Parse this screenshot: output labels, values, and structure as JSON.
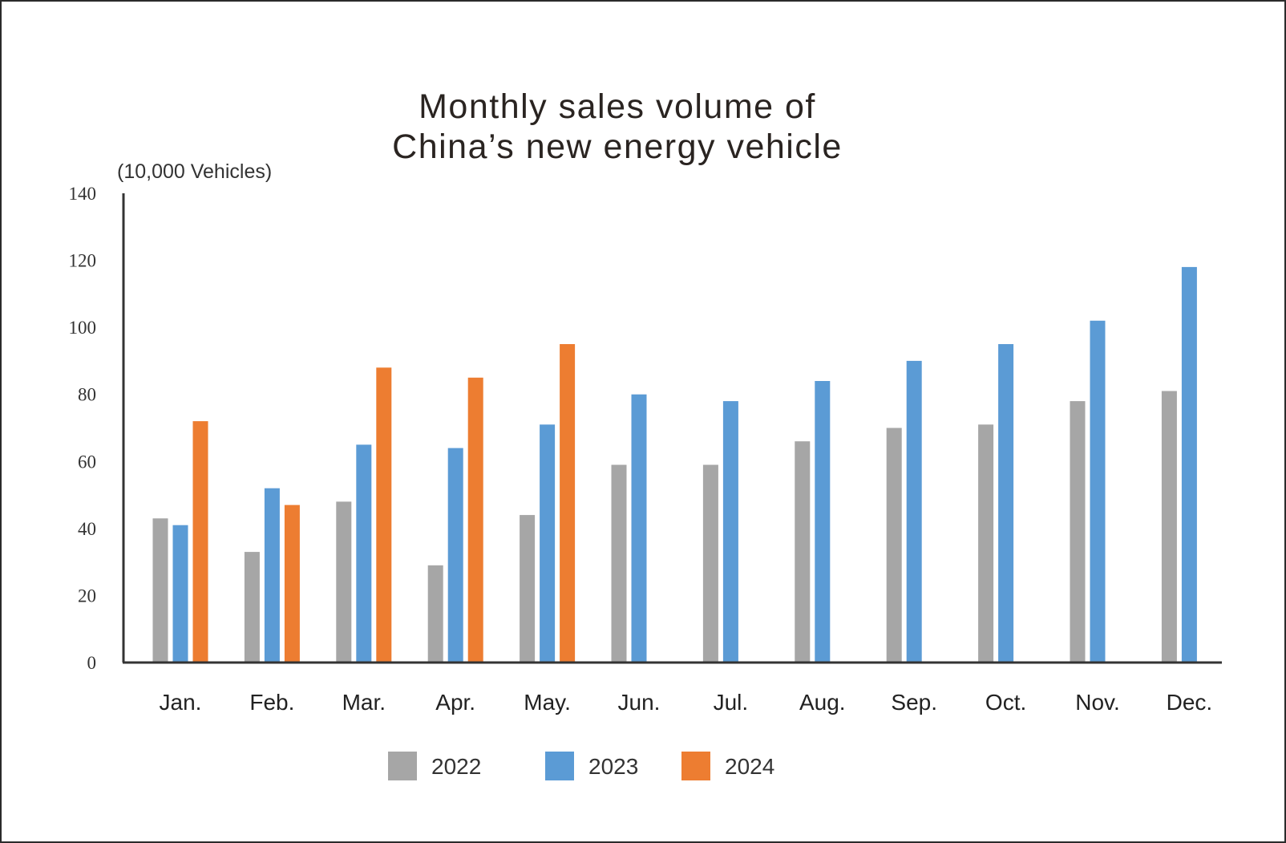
{
  "chart_data": {
    "type": "bar",
    "title_lines": [
      "Monthly sales volume of",
      "China’s new energy vehicle"
    ],
    "ylabel": "(10,000 Vehicles)",
    "xlabel": "",
    "ylim": [
      0,
      140
    ],
    "yticks": [
      "140",
      "120",
      "100",
      "80",
      "60",
      "40",
      "20",
      "0"
    ],
    "ytick_values": [
      140,
      120,
      100,
      80,
      60,
      40,
      20,
      0
    ],
    "categories": [
      "Jan.",
      "Feb.",
      "Mar.",
      "Apr.",
      "May.",
      "Jun.",
      "Jul.",
      "Aug.",
      "Sep.",
      "Oct.",
      "Nov.",
      "Dec."
    ],
    "series": [
      {
        "name": "2022",
        "color": "#a6a6a6",
        "values": [
          43,
          33,
          48,
          29,
          44,
          59,
          59,
          66,
          70,
          71,
          78,
          81
        ]
      },
      {
        "name": "2023",
        "color": "#5b9bd5",
        "values": [
          41,
          52,
          65,
          64,
          71,
          80,
          78,
          84,
          90,
          95,
          102,
          118
        ]
      },
      {
        "name": "2024",
        "color": "#ed7d31",
        "values": [
          72,
          47,
          88,
          85,
          95,
          null,
          null,
          null,
          null,
          null,
          null,
          null
        ]
      }
    ],
    "grid": false,
    "legend_position": "bottom"
  }
}
